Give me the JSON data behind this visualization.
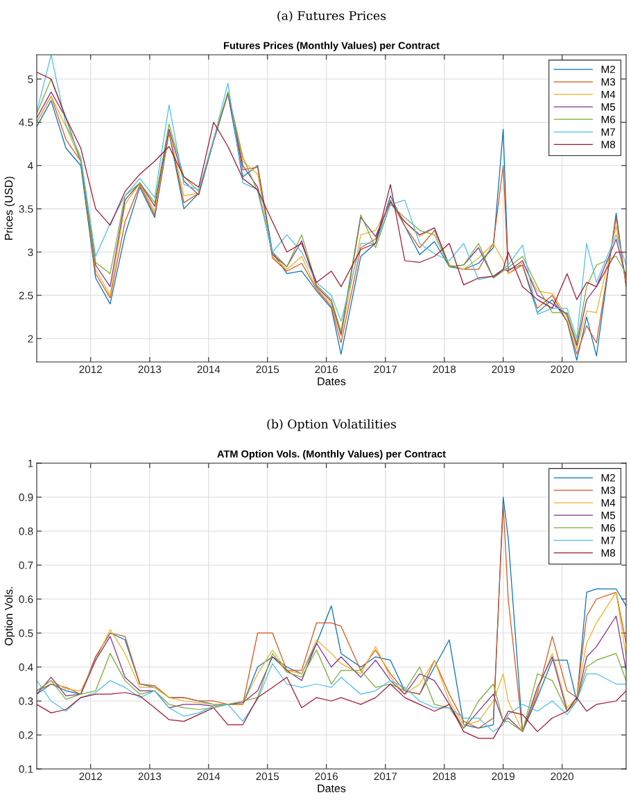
{
  "chart_data": [
    {
      "type": "line",
      "subtitle": "(a) Futures Prices",
      "title": "Futures Prices (Monthly Values) per Contract",
      "xlabel": "Dates",
      "ylabel": "Prices (USD)",
      "x": [
        "2011-02",
        "2011-05",
        "2011-08",
        "2011-11",
        "2012-02",
        "2012-05",
        "2012-08",
        "2012-11",
        "2013-02",
        "2013-05",
        "2013-08",
        "2013-11",
        "2014-02",
        "2014-05",
        "2014-08",
        "2014-11",
        "2015-02",
        "2015-05",
        "2015-08",
        "2015-11",
        "2016-02",
        "2016-04",
        "2016-08",
        "2016-11",
        "2017-02",
        "2017-05",
        "2017-08",
        "2017-11",
        "2018-02",
        "2018-05",
        "2018-08",
        "2018-11",
        "2019-01",
        "2019-02",
        "2019-05",
        "2019-08",
        "2019-11",
        "2020-02",
        "2020-04",
        "2020-06",
        "2020-08",
        "2020-12",
        "2021-02"
      ],
      "series": [
        {
          "name": "M2",
          "color": "#0072bd",
          "values": [
            4.45,
            4.75,
            4.2,
            4.0,
            2.7,
            2.4,
            3.2,
            3.75,
            3.4,
            4.38,
            3.5,
            3.68,
            4.28,
            4.83,
            3.87,
            4.0,
            3.0,
            2.75,
            2.78,
            2.55,
            2.35,
            1.82,
            2.95,
            3.1,
            3.65,
            3.3,
            2.97,
            3.12,
            2.83,
            2.8,
            2.87,
            3.05,
            4.42,
            2.8,
            2.85,
            2.3,
            2.45,
            2.2,
            1.75,
            2.25,
            1.8,
            3.45,
            2.6
          ]
        },
        {
          "name": "M3",
          "color": "#d95319",
          "values": [
            4.5,
            4.8,
            4.3,
            4.05,
            2.75,
            2.47,
            3.35,
            3.78,
            3.43,
            4.4,
            3.57,
            3.68,
            4.28,
            4.83,
            3.95,
            3.98,
            2.93,
            2.78,
            2.87,
            2.57,
            2.37,
            1.95,
            3.05,
            3.15,
            3.6,
            3.3,
            3.05,
            3.25,
            2.85,
            2.8,
            2.8,
            3.1,
            4.0,
            2.75,
            2.85,
            2.35,
            2.5,
            2.2,
            1.82,
            2.15,
            1.95,
            3.4,
            2.6
          ]
        },
        {
          "name": "M4",
          "color": "#edb120",
          "values": [
            4.5,
            4.8,
            4.45,
            4.05,
            2.8,
            2.5,
            3.55,
            3.8,
            3.47,
            4.4,
            3.65,
            3.68,
            4.3,
            4.83,
            4.05,
            3.9,
            2.95,
            2.8,
            2.95,
            2.58,
            2.4,
            2.03,
            3.2,
            3.25,
            3.57,
            3.35,
            3.18,
            3.28,
            2.85,
            2.8,
            2.93,
            3.1,
            2.9,
            2.75,
            2.88,
            2.55,
            2.52,
            2.25,
            1.88,
            2.32,
            2.3,
            3.3,
            2.65
          ]
        },
        {
          "name": "M5",
          "color": "#7e2f8e",
          "values": [
            4.55,
            4.85,
            4.55,
            4.05,
            2.85,
            2.6,
            3.6,
            3.8,
            3.53,
            4.42,
            3.82,
            3.66,
            4.3,
            4.83,
            4.0,
            3.75,
            2.97,
            2.83,
            3.13,
            2.6,
            2.43,
            2.05,
            3.4,
            3.18,
            3.58,
            3.35,
            3.2,
            3.28,
            2.83,
            2.85,
            3.05,
            2.7,
            2.8,
            2.78,
            2.9,
            2.5,
            2.4,
            2.28,
            1.92,
            2.45,
            2.6,
            3.15,
            2.7
          ]
        },
        {
          "name": "M6",
          "color": "#77ac30",
          "values": [
            4.6,
            5.0,
            4.55,
            4.05,
            2.88,
            2.75,
            3.65,
            3.8,
            3.57,
            4.48,
            3.87,
            3.7,
            4.3,
            4.85,
            4.1,
            3.7,
            3.0,
            2.83,
            3.2,
            2.62,
            2.45,
            2.08,
            3.43,
            3.05,
            3.55,
            3.4,
            3.25,
            3.2,
            2.83,
            2.85,
            3.1,
            2.7,
            2.78,
            2.82,
            2.95,
            2.6,
            2.3,
            2.3,
            1.95,
            2.6,
            2.85,
            2.95,
            2.75
          ]
        },
        {
          "name": "M7",
          "color": "#4dbeee",
          "values": [
            4.62,
            5.28,
            4.47,
            4.1,
            2.95,
            3.33,
            3.65,
            3.85,
            3.63,
            4.7,
            3.78,
            3.72,
            4.3,
            4.95,
            3.8,
            3.72,
            3.0,
            3.2,
            3.0,
            2.65,
            2.5,
            2.2,
            3.1,
            3.1,
            3.55,
            3.6,
            3.1,
            2.98,
            2.9,
            3.1,
            2.68,
            2.72,
            2.8,
            2.85,
            3.08,
            2.28,
            2.35,
            2.35,
            2.0,
            3.1,
            2.65,
            3.2,
            2.85
          ]
        },
        {
          "name": "M8",
          "color": "#a2142f",
          "values": [
            5.08,
            5.0,
            4.55,
            4.2,
            3.5,
            3.31,
            3.7,
            3.9,
            4.05,
            4.22,
            3.87,
            3.75,
            4.5,
            4.22,
            3.85,
            3.72,
            3.35,
            3.0,
            3.1,
            2.65,
            2.78,
            2.6,
            3.03,
            3.1,
            3.78,
            2.9,
            2.88,
            2.95,
            3.1,
            2.62,
            2.7,
            2.72,
            2.8,
            3.0,
            2.6,
            2.45,
            2.35,
            2.75,
            2.45,
            2.65,
            2.6,
            3.0,
            3.0
          ]
        }
      ],
      "xlim": [
        "2011-02",
        "2021-02"
      ],
      "ylim": [
        1.73,
        5.28
      ],
      "xticks": [
        {
          "value": "2012-01",
          "label": "2012"
        },
        {
          "value": "2013-01",
          "label": "2013"
        },
        {
          "value": "2014-01",
          "label": "2014"
        },
        {
          "value": "2015-01",
          "label": "2015"
        },
        {
          "value": "2016-01",
          "label": "2016"
        },
        {
          "value": "2017-01",
          "label": "2017"
        },
        {
          "value": "2018-01",
          "label": "2018"
        },
        {
          "value": "2019-01",
          "label": "2019"
        },
        {
          "value": "2020-01",
          "label": "2020"
        }
      ],
      "yticks": [
        2,
        2.5,
        3,
        3.5,
        4,
        4.5,
        5
      ],
      "grid": true,
      "legend": "top right",
      "marker": "none",
      "line_style": "solid"
    },
    {
      "type": "line",
      "subtitle": "(b) Option Volatilities",
      "title": "ATM Option Vols. (Monthly Values) per Contract",
      "xlabel": "Dates",
      "ylabel": "Option Vols.",
      "x": [
        "2011-02",
        "2011-05",
        "2011-08",
        "2011-11",
        "2012-02",
        "2012-05",
        "2012-08",
        "2012-11",
        "2013-02",
        "2013-05",
        "2013-08",
        "2013-11",
        "2014-02",
        "2014-05",
        "2014-08",
        "2014-11",
        "2015-02",
        "2015-05",
        "2015-08",
        "2015-11",
        "2016-02",
        "2016-04",
        "2016-08",
        "2016-11",
        "2017-02",
        "2017-05",
        "2017-08",
        "2017-11",
        "2018-02",
        "2018-05",
        "2018-08",
        "2018-11",
        "2019-01",
        "2019-02",
        "2019-05",
        "2019-08",
        "2019-11",
        "2020-02",
        "2020-04",
        "2020-06",
        "2020-08",
        "2020-12",
        "2021-02"
      ],
      "series": [
        {
          "name": "M2",
          "color": "#0072bd",
          "values": [
            0.32,
            0.35,
            0.33,
            0.32,
            0.43,
            0.5,
            0.48,
            0.35,
            0.34,
            0.31,
            0.31,
            0.3,
            0.29,
            0.29,
            0.29,
            0.4,
            0.43,
            0.4,
            0.38,
            0.47,
            0.58,
            0.44,
            0.4,
            0.43,
            0.42,
            0.33,
            0.32,
            0.4,
            0.48,
            0.23,
            0.22,
            0.23,
            0.9,
            0.78,
            0.21,
            0.31,
            0.42,
            0.42,
            0.3,
            0.62,
            0.63,
            0.63,
            0.58
          ]
        },
        {
          "name": "M3",
          "color": "#d95319",
          "values": [
            0.33,
            0.35,
            0.34,
            0.32,
            0.43,
            0.5,
            0.49,
            0.35,
            0.345,
            0.31,
            0.31,
            0.3,
            0.3,
            0.29,
            0.29,
            0.5,
            0.5,
            0.39,
            0.39,
            0.53,
            0.53,
            0.52,
            0.39,
            0.45,
            0.38,
            0.33,
            0.32,
            0.42,
            0.32,
            0.24,
            0.22,
            0.25,
            0.88,
            0.6,
            0.21,
            0.32,
            0.49,
            0.33,
            0.31,
            0.55,
            0.6,
            0.62,
            0.47
          ]
        },
        {
          "name": "M4",
          "color": "#edb120",
          "values": [
            0.33,
            0.36,
            0.335,
            0.33,
            0.42,
            0.51,
            0.44,
            0.34,
            0.34,
            0.31,
            0.3,
            0.295,
            0.29,
            0.29,
            0.29,
            0.38,
            0.45,
            0.39,
            0.38,
            0.48,
            0.44,
            0.41,
            0.38,
            0.46,
            0.37,
            0.32,
            0.35,
            0.42,
            0.3,
            0.23,
            0.24,
            0.3,
            0.38,
            0.3,
            0.21,
            0.33,
            0.44,
            0.28,
            0.31,
            0.47,
            0.53,
            0.62,
            0.43
          ]
        },
        {
          "name": "M5",
          "color": "#7e2f8e",
          "values": [
            0.32,
            0.37,
            0.315,
            0.32,
            0.42,
            0.49,
            0.37,
            0.33,
            0.33,
            0.28,
            0.29,
            0.29,
            0.285,
            0.29,
            0.295,
            0.33,
            0.43,
            0.39,
            0.36,
            0.47,
            0.4,
            0.43,
            0.37,
            0.42,
            0.36,
            0.32,
            0.38,
            0.36,
            0.29,
            0.22,
            0.27,
            0.32,
            0.24,
            0.25,
            0.21,
            0.34,
            0.43,
            0.27,
            0.3,
            0.43,
            0.46,
            0.55,
            0.39
          ]
        },
        {
          "name": "M6",
          "color": "#77ac30",
          "values": [
            0.33,
            0.36,
            0.305,
            0.32,
            0.33,
            0.44,
            0.36,
            0.32,
            0.33,
            0.29,
            0.28,
            0.275,
            0.28,
            0.29,
            0.3,
            0.31,
            0.44,
            0.385,
            0.37,
            0.45,
            0.35,
            0.39,
            0.39,
            0.34,
            0.35,
            0.33,
            0.4,
            0.29,
            0.28,
            0.22,
            0.3,
            0.35,
            0.24,
            0.24,
            0.21,
            0.38,
            0.36,
            0.27,
            0.3,
            0.4,
            0.42,
            0.44,
            0.36
          ]
        },
        {
          "name": "M7",
          "color": "#4dbeee",
          "values": [
            0.36,
            0.3,
            0.27,
            0.31,
            0.325,
            0.36,
            0.34,
            0.31,
            0.33,
            0.28,
            0.255,
            0.265,
            0.285,
            0.29,
            0.24,
            0.305,
            0.41,
            0.35,
            0.34,
            0.35,
            0.34,
            0.37,
            0.32,
            0.33,
            0.36,
            0.34,
            0.3,
            0.28,
            0.28,
            0.25,
            0.25,
            0.21,
            0.23,
            0.26,
            0.29,
            0.27,
            0.3,
            0.26,
            0.3,
            0.38,
            0.38,
            0.35,
            0.35
          ]
        },
        {
          "name": "M8",
          "color": "#a2142f",
          "values": [
            0.29,
            0.265,
            0.275,
            0.31,
            0.32,
            0.32,
            0.325,
            0.315,
            0.28,
            0.245,
            0.24,
            0.26,
            0.28,
            0.23,
            0.23,
            0.31,
            0.34,
            0.37,
            0.28,
            0.31,
            0.3,
            0.31,
            0.29,
            0.31,
            0.35,
            0.31,
            0.29,
            0.27,
            0.29,
            0.21,
            0.19,
            0.19,
            0.24,
            0.27,
            0.26,
            0.21,
            0.25,
            0.27,
            0.31,
            0.27,
            0.29,
            0.3,
            0.33
          ]
        }
      ],
      "xlim": [
        "2011-02",
        "2021-02"
      ],
      "ylim": [
        0.1,
        1
      ],
      "xticks": [
        {
          "value": "2012-01",
          "label": "2012"
        },
        {
          "value": "2013-01",
          "label": "2013"
        },
        {
          "value": "2014-01",
          "label": "2014"
        },
        {
          "value": "2015-01",
          "label": "2015"
        },
        {
          "value": "2016-01",
          "label": "2016"
        },
        {
          "value": "2017-01",
          "label": "2017"
        },
        {
          "value": "2018-01",
          "label": "2018"
        },
        {
          "value": "2019-01",
          "label": "2019"
        },
        {
          "value": "2020-01",
          "label": "2020"
        }
      ],
      "yticks": [
        0.1,
        0.2,
        0.3,
        0.4,
        0.5,
        0.6,
        0.7,
        0.8,
        0.9,
        1
      ],
      "grid": true,
      "legend": "top right",
      "marker": "none",
      "line_style": "solid"
    }
  ]
}
